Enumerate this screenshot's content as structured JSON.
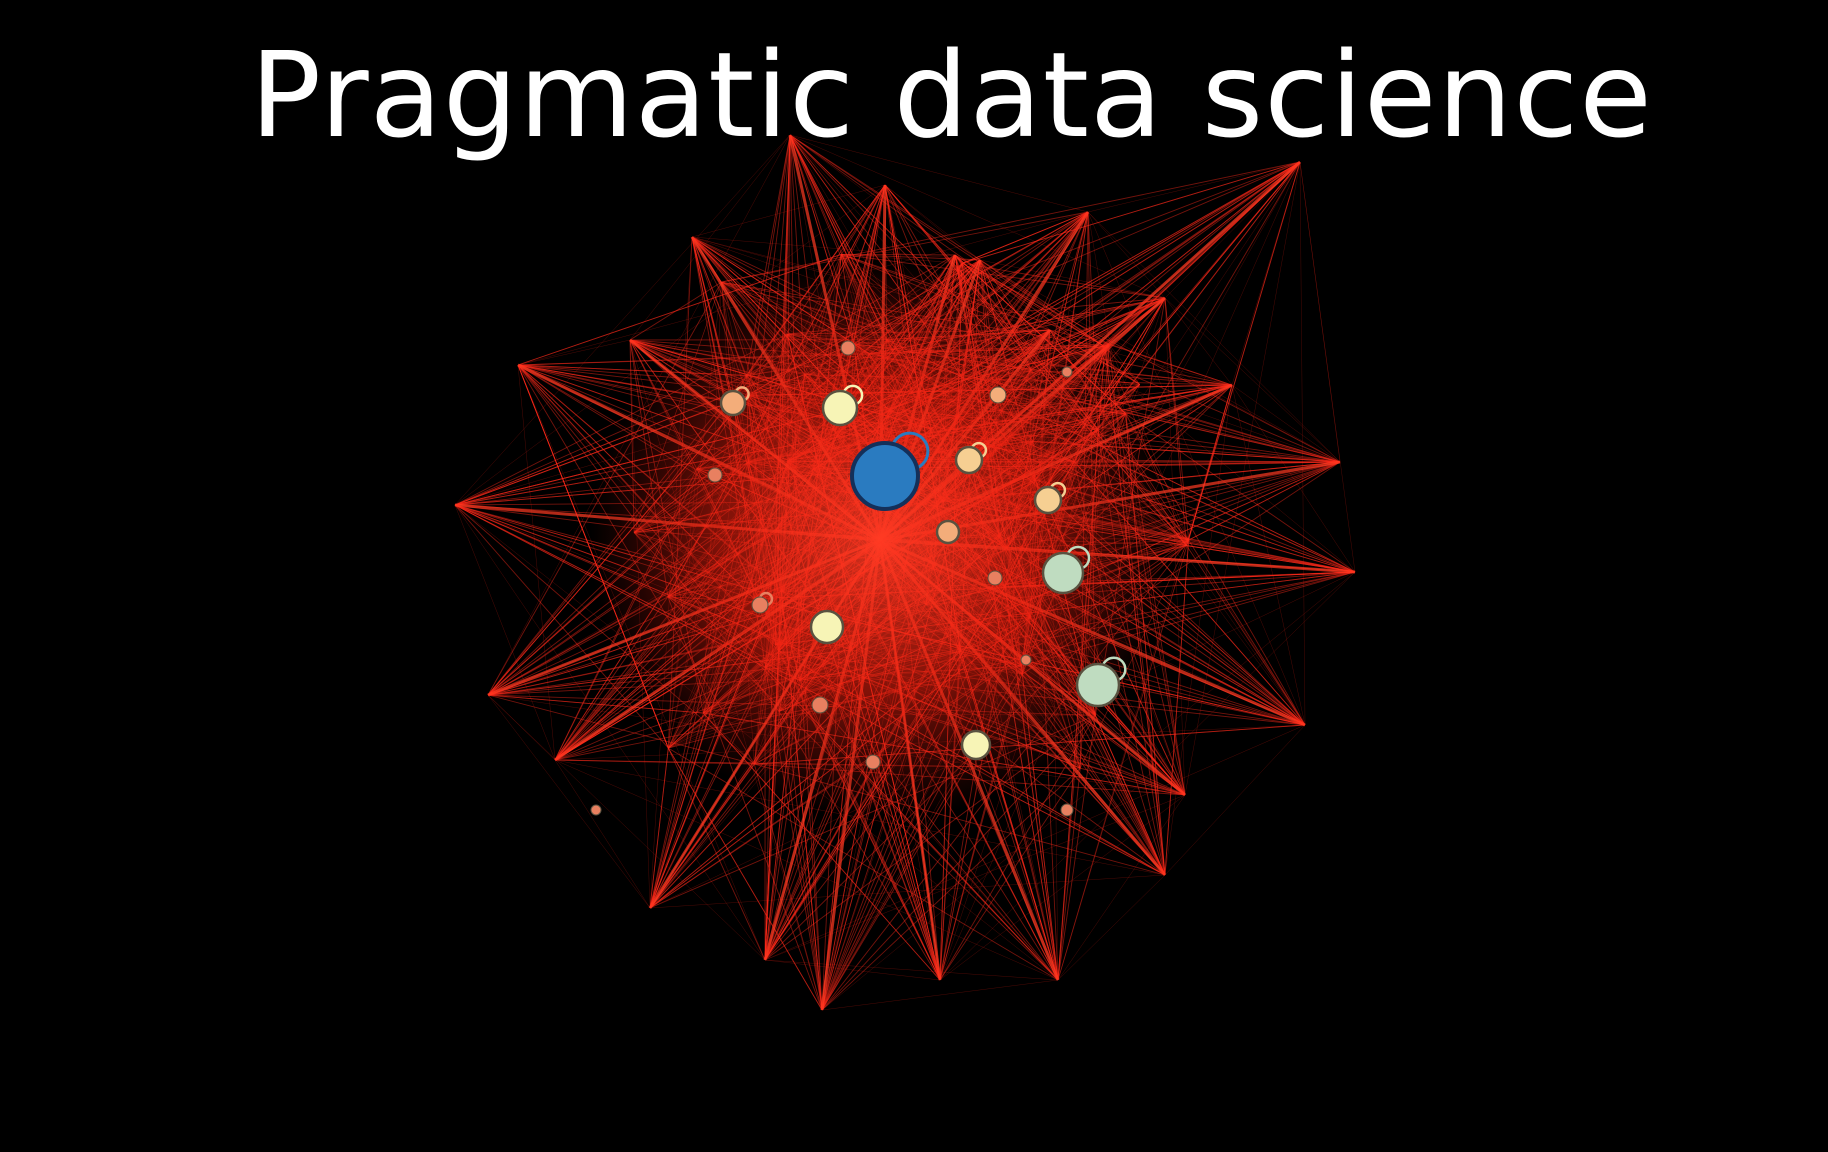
{
  "title": "Pragmatic data science",
  "colors": {
    "background": "#000000",
    "title_text": "#ffffff",
    "edge": "#ff2a1a",
    "edge_faint": "#d81e12",
    "hub_node_fill": "#2a7bc0",
    "hub_node_stroke": "#14305a",
    "node_fill_yellow": "#f7f4b6",
    "node_fill_light_orange": "#f6cf92",
    "node_fill_orange": "#f3ad7a",
    "node_fill_salmon": "#e88060",
    "node_fill_green": "#bfdcc0",
    "node_stroke": "#5a5240"
  },
  "graph": {
    "node_groups": [
      {
        "name": "hub",
        "count": 1
      },
      {
        "name": "green",
        "count": 2
      },
      {
        "name": "yellow",
        "count": 3
      },
      {
        "name": "light-orange",
        "count": 2
      },
      {
        "name": "orange",
        "count": 3
      },
      {
        "name": "salmon",
        "count": 10
      }
    ]
  }
}
